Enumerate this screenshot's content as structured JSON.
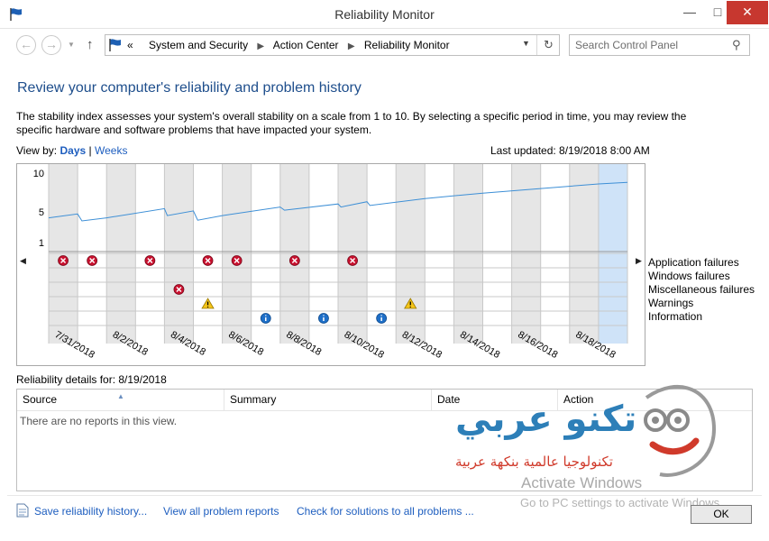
{
  "window": {
    "title": "Reliability Monitor"
  },
  "address": {
    "crumb_prefix": "«",
    "crumbs": [
      "System and Security",
      "Action Center",
      "Reliability Monitor"
    ]
  },
  "search": {
    "placeholder": "Search Control Panel"
  },
  "page": {
    "heading": "Review your computer's reliability and problem history",
    "description": "The stability index assesses your system's overall stability on a scale from 1 to 10. By selecting a specific period in time, you may review the specific hardware and software problems that have impacted your system.",
    "view_by_label": "View by:",
    "view_days": "Days",
    "view_sep": "|",
    "view_weeks": "Weeks",
    "last_updated": "Last updated: 8/19/2018 8:00 AM"
  },
  "chart_data": {
    "type": "line",
    "y_ticks": [
      "10",
      "5",
      "1"
    ],
    "ylim": [
      1,
      10
    ],
    "x_labels": [
      "7/31/2018",
      "8/2/2018",
      "8/4/2018",
      "8/6/2018",
      "8/8/2018",
      "8/10/2018",
      "8/12/2018",
      "8/14/2018",
      "8/16/2018",
      "8/18/2018"
    ],
    "days": 20,
    "selected_day": 19,
    "stability": [
      [
        0,
        4.2
      ],
      [
        1,
        4.7
      ],
      [
        1.15,
        3.8
      ],
      [
        2,
        4.2
      ],
      [
        4,
        5.4
      ],
      [
        4.1,
        4.5
      ],
      [
        5,
        5.1
      ],
      [
        5.15,
        3.9
      ],
      [
        6,
        4.5
      ],
      [
        8,
        5.6
      ],
      [
        8.15,
        5.2
      ],
      [
        10,
        6.0
      ],
      [
        10.1,
        5.6
      ],
      [
        11,
        6.3
      ],
      [
        11.1,
        5.8
      ],
      [
        13,
        6.7
      ],
      [
        15,
        7.4
      ],
      [
        17,
        8.0
      ],
      [
        19,
        8.6
      ],
      [
        20,
        8.8
      ]
    ],
    "rows": [
      "Application failures",
      "Windows failures",
      "Miscellaneous failures",
      "Warnings",
      "Information"
    ],
    "events": [
      {
        "row": 0,
        "day": 0.5,
        "kind": "error"
      },
      {
        "row": 0,
        "day": 1.5,
        "kind": "error"
      },
      {
        "row": 0,
        "day": 3.5,
        "kind": "error"
      },
      {
        "row": 0,
        "day": 5.5,
        "kind": "error"
      },
      {
        "row": 0,
        "day": 6.5,
        "kind": "error"
      },
      {
        "row": 0,
        "day": 8.5,
        "kind": "error"
      },
      {
        "row": 0,
        "day": 10.5,
        "kind": "error"
      },
      {
        "row": 2,
        "day": 4.5,
        "kind": "error"
      },
      {
        "row": 3,
        "day": 5.5,
        "kind": "warning"
      },
      {
        "row": 3,
        "day": 12.5,
        "kind": "warning"
      },
      {
        "row": 4,
        "day": 7.5,
        "kind": "info"
      },
      {
        "row": 4,
        "day": 9.5,
        "kind": "info"
      },
      {
        "row": 4,
        "day": 11.5,
        "kind": "info"
      }
    ]
  },
  "details": {
    "label": "Reliability details for: 8/19/2018",
    "columns": [
      "Source",
      "Summary",
      "Date",
      "Action"
    ],
    "empty": "There are no reports in this view."
  },
  "watermark": {
    "title": "تكنو عربي",
    "subtitle": "تكنولوجيا عالمية بنكهة عربية",
    "activate_title": "Activate Windows",
    "activate_sub": "Go to PC settings to activate Windows."
  },
  "footer": {
    "save": "Save reliability history...",
    "view_all": "View all problem reports",
    "check": "Check for solutions to all problems ...",
    "ok": "OK"
  }
}
